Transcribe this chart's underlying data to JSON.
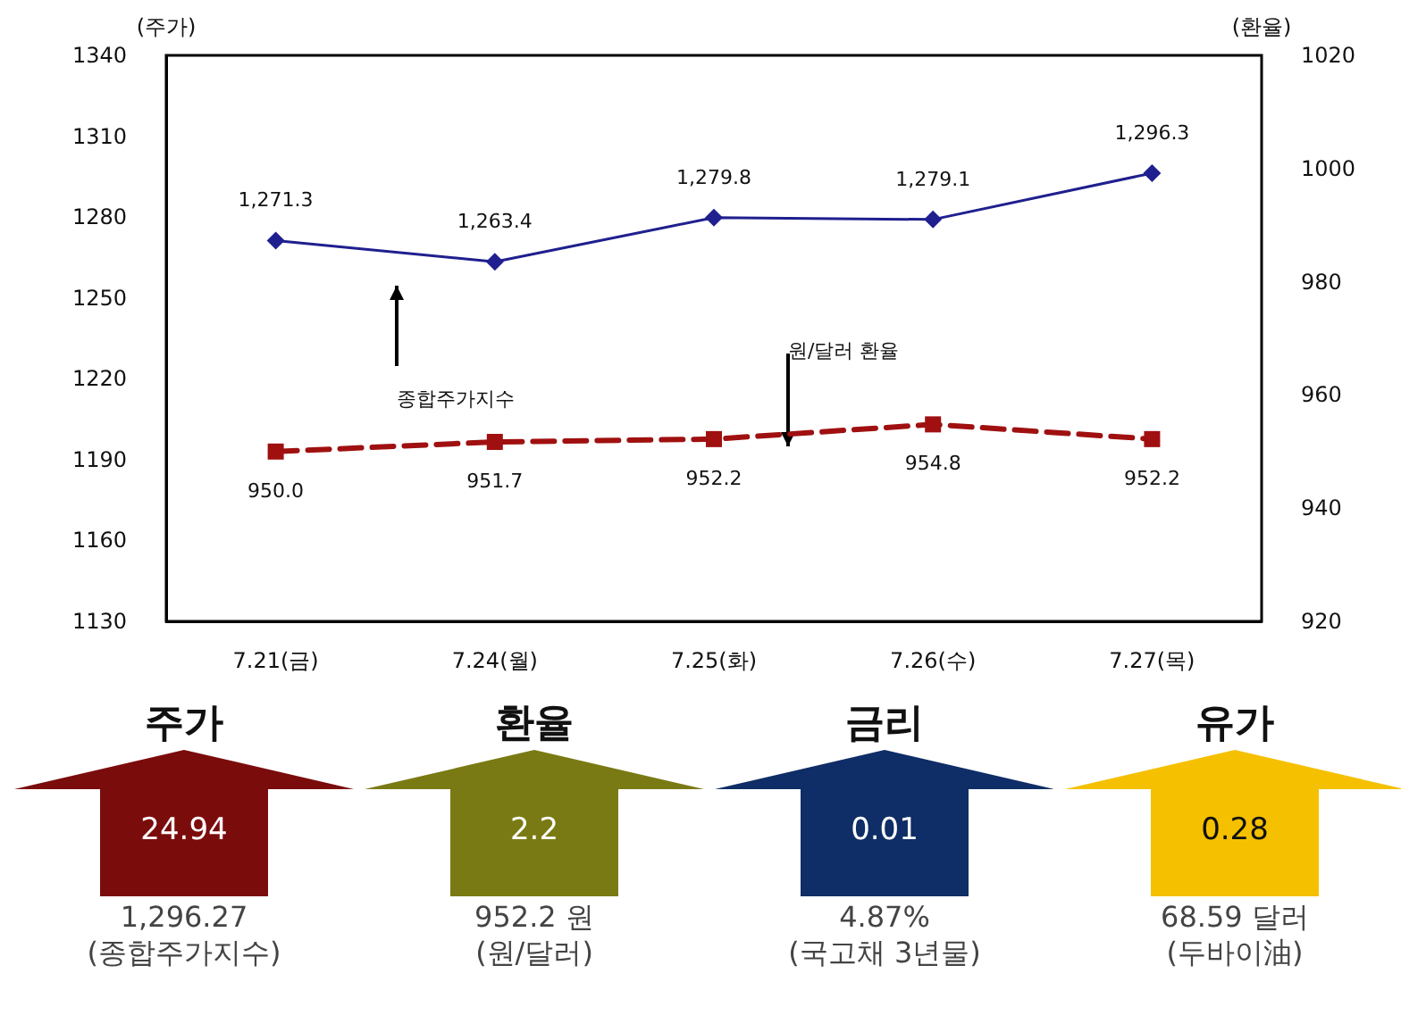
{
  "chart_data": [
    {
      "type": "line",
      "ylabel": "(주가)",
      "y2label": "(환율)",
      "categories": [
        "7.21(금)",
        "7.24(월)",
        "7.25(화)",
        "7.26(수)",
        "7.27(목)"
      ],
      "series": [
        {
          "color": "#1f1f8f",
          "values": [
            1271.3,
            1263.4,
            1279.8,
            1279.1,
            1296.3
          ],
          "value_labels": [
            "1,271.3",
            "1,263.4",
            "1,279.8",
            "1,279.1",
            "1,296.3"
          ],
          "marker": "diamond",
          "line_style": "solid"
        },
        {
          "color": "#a01010",
          "axis": "y2",
          "values": [
            950.0,
            951.7,
            952.2,
            954.8,
            952.2
          ],
          "value_labels": [
            "950.0",
            "951.7",
            "952.2",
            "954.8",
            "952.2"
          ],
          "marker": "square",
          "line_style": "dashed"
        }
      ],
      "ylim": [
        1130,
        1340
      ],
      "yticks": [
        1130,
        1160,
        1190,
        1220,
        1250,
        1280,
        1310,
        1340
      ],
      "y2lim": [
        920,
        1020
      ],
      "y2ticks": [
        920,
        940,
        960,
        980,
        1000,
        1020
      ],
      "annotations": [
        "종합주가지수",
        "원/달러 환율"
      ]
    },
    {
      "type": "other",
      "title": "주가",
      "color": "#7b0c0c",
      "annotations": [
        "24.94",
        "1,296.27",
        "(종합주가지수)"
      ]
    },
    {
      "type": "other",
      "title": "환율",
      "color": "#7a7a14",
      "annotations": [
        "2.2",
        "952.2 원",
        "(원/달러)"
      ]
    },
    {
      "type": "other",
      "title": "금리",
      "color": "#0f2d66",
      "annotations": [
        "0.01",
        "4.87%",
        "(국고채 3년물)"
      ]
    },
    {
      "type": "other",
      "title": "유가",
      "color": "#f5c000",
      "annotations": [
        "0.28",
        "68.59 달러",
        "(두바이油)"
      ]
    }
  ]
}
